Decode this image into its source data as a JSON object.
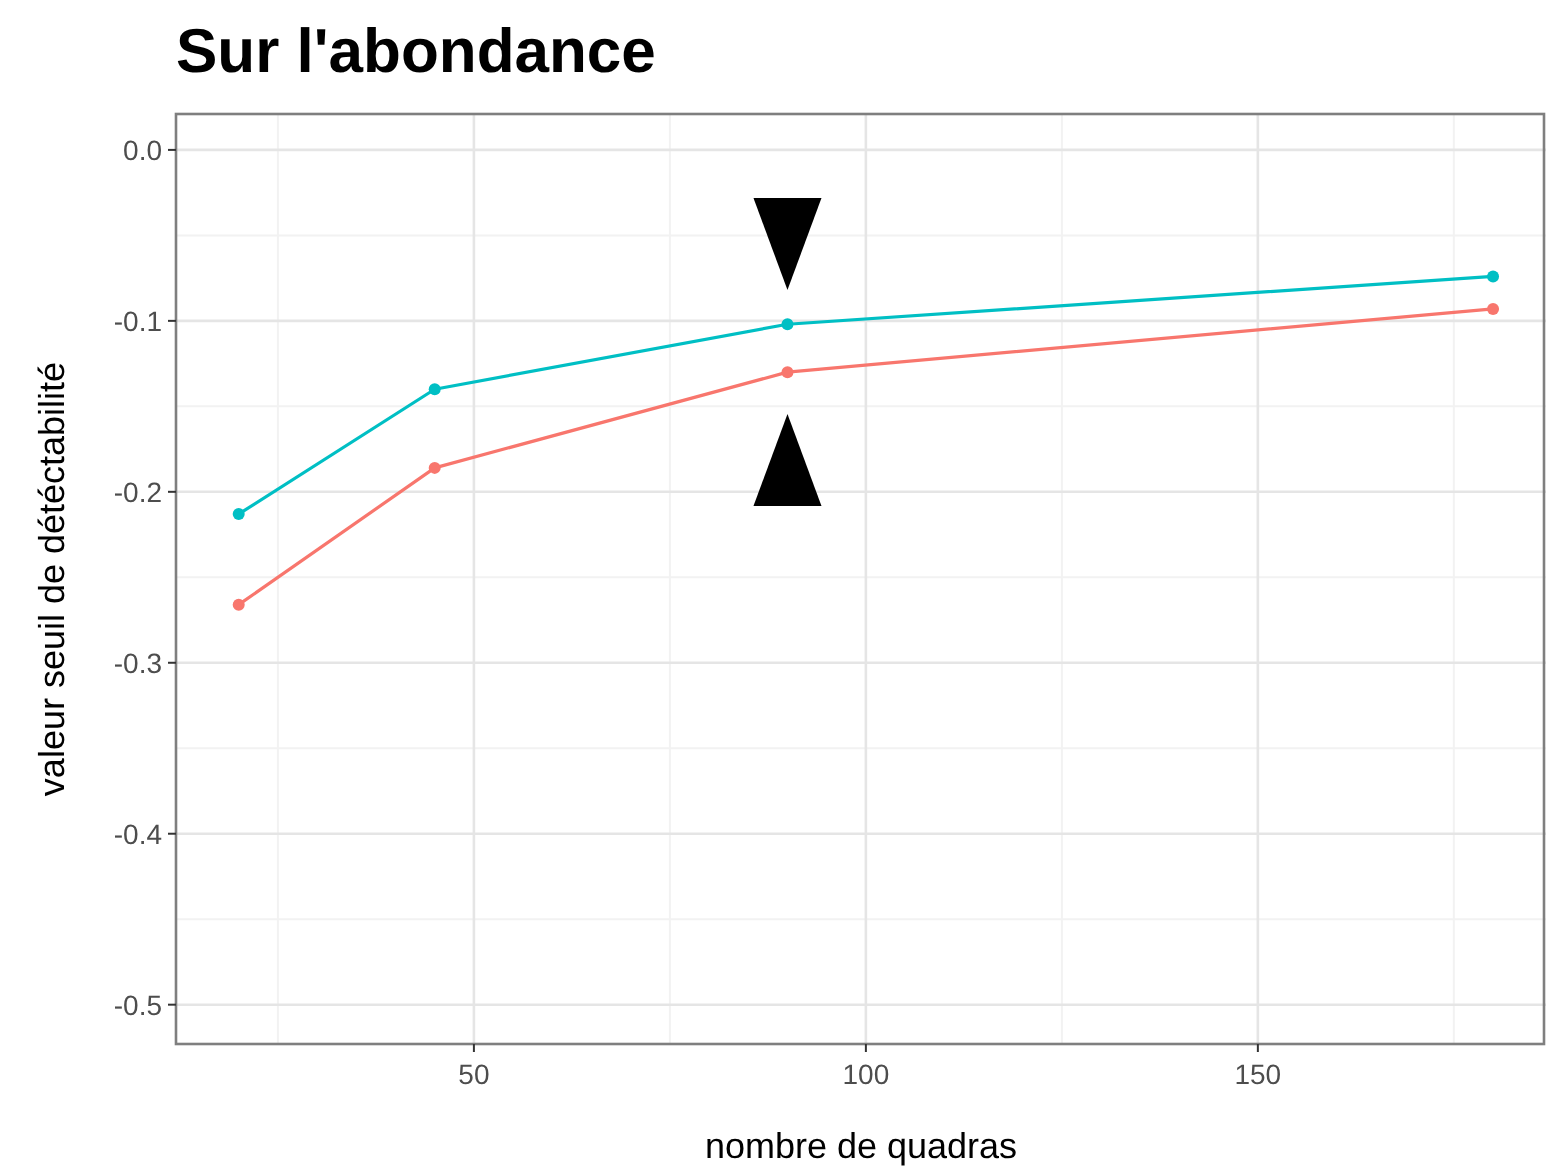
{
  "chart_data": {
    "type": "line",
    "title": "Sur l'abondance",
    "xlabel": "nombre de quadras",
    "ylabel": "valeur seuil de détéctabilité",
    "x": [
      20,
      45,
      90,
      180
    ],
    "series": [
      {
        "color": "#f8766d",
        "values": [
          -0.266,
          -0.186,
          -0.13,
          -0.093
        ]
      },
      {
        "color": "#00bfc4",
        "values": [
          -0.213,
          -0.14,
          -0.102,
          -0.074
        ]
      }
    ],
    "xlim": [
      12,
      186.5
    ],
    "xticks": [
      50,
      100,
      150
    ],
    "ylim": [
      -0.523,
      0.021
    ],
    "yticks": [
      {
        "value": 0,
        "label": "0.0"
      },
      -0.1,
      -0.2,
      -0.3,
      -0.4,
      -0.5
    ],
    "grid": true,
    "marker": "circle",
    "line_style": "solid"
  }
}
